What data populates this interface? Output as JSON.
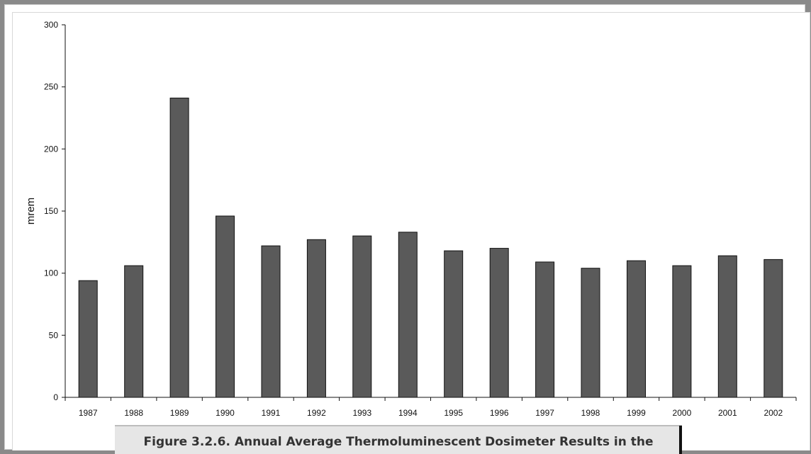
{
  "caption": "Figure 3.2.6. Annual Average Thermoluminescent Dosimeter Results in the",
  "colors": {
    "bar": "#5a5a5a",
    "bar_stroke": "#111111",
    "frame": "#8a8a8a",
    "caption_bg": "#e6e6e6"
  },
  "chart_data": {
    "type": "bar",
    "categories": [
      "1987",
      "1988",
      "1989",
      "1990",
      "1991",
      "1992",
      "1993",
      "1994",
      "1995",
      "1996",
      "1997",
      "1998",
      "1999",
      "2000",
      "2001",
      "2002"
    ],
    "values": [
      94,
      106,
      241,
      146,
      122,
      127,
      130,
      133,
      118,
      120,
      109,
      104,
      110,
      106,
      114,
      111
    ],
    "title": "",
    "xlabel": "",
    "ylabel": "mrem",
    "ylim": [
      0,
      300
    ],
    "yticks": [
      0,
      50,
      100,
      150,
      200,
      250,
      300
    ],
    "grid": false,
    "legend": "none"
  }
}
